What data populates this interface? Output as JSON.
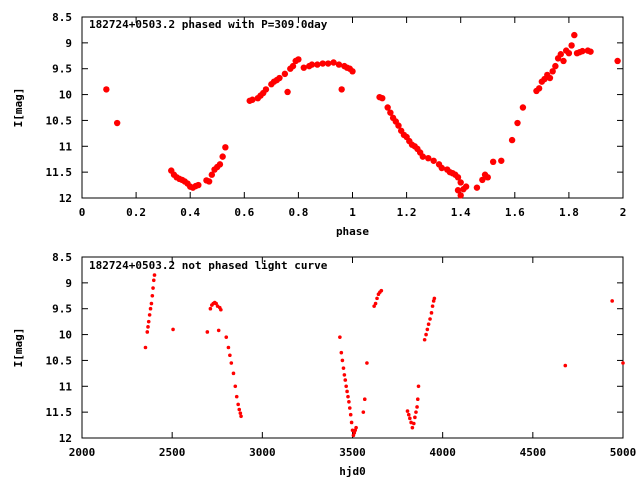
{
  "chart_data": [
    {
      "type": "scatter",
      "title": "182724+0503.2 phased with P=309.0day",
      "xlabel": "phase",
      "ylabel": "I[mag]",
      "xlim": [
        0,
        2
      ],
      "ylim": [
        12,
        8.5
      ],
      "y_inverted": true,
      "xticks": [
        0,
        0.2,
        0.4,
        0.6,
        0.8,
        1,
        1.2,
        1.4,
        1.6,
        1.8,
        2
      ],
      "xtick_labels": [
        "0",
        "0.2",
        "0.4",
        "0.6",
        "0.8",
        "1",
        "1.2",
        "1.4",
        "1.6",
        "1.8",
        "2"
      ],
      "yticks": [
        8.5,
        9,
        9.5,
        10,
        10.5,
        11,
        11.5,
        12
      ],
      "ytick_labels": [
        "8.5",
        "9",
        "9.5",
        "10",
        "10.5",
        "11",
        "11.5",
        "12"
      ],
      "marker_color": "#ff0000",
      "marker_size": "large",
      "grid": false,
      "points": [
        [
          0.09,
          9.9
        ],
        [
          0.13,
          10.55
        ],
        [
          0.33,
          11.47
        ],
        [
          0.34,
          11.55
        ],
        [
          0.35,
          11.6
        ],
        [
          0.36,
          11.63
        ],
        [
          0.37,
          11.65
        ],
        [
          0.38,
          11.68
        ],
        [
          0.39,
          11.72
        ],
        [
          0.4,
          11.78
        ],
        [
          0.41,
          11.8
        ],
        [
          0.42,
          11.77
        ],
        [
          0.43,
          11.75
        ],
        [
          0.46,
          11.66
        ],
        [
          0.47,
          11.68
        ],
        [
          0.48,
          11.55
        ],
        [
          0.49,
          11.45
        ],
        [
          0.5,
          11.4
        ],
        [
          0.51,
          11.35
        ],
        [
          0.52,
          11.2
        ],
        [
          0.53,
          11.02
        ],
        [
          0.62,
          10.12
        ],
        [
          0.63,
          10.1
        ],
        [
          0.65,
          10.07
        ],
        [
          0.66,
          10.02
        ],
        [
          0.67,
          9.97
        ],
        [
          0.68,
          9.9
        ],
        [
          0.7,
          9.8
        ],
        [
          0.71,
          9.75
        ],
        [
          0.72,
          9.72
        ],
        [
          0.73,
          9.68
        ],
        [
          0.75,
          9.6
        ],
        [
          0.76,
          9.95
        ],
        [
          0.77,
          9.5
        ],
        [
          0.78,
          9.45
        ],
        [
          0.79,
          9.35
        ],
        [
          0.8,
          9.32
        ],
        [
          0.82,
          9.48
        ],
        [
          0.84,
          9.45
        ],
        [
          0.85,
          9.42
        ],
        [
          0.87,
          9.42
        ],
        [
          0.89,
          9.4
        ],
        [
          0.91,
          9.4
        ],
        [
          0.93,
          9.38
        ],
        [
          0.95,
          9.42
        ],
        [
          0.96,
          9.9
        ],
        [
          0.97,
          9.45
        ],
        [
          0.98,
          9.48
        ],
        [
          0.99,
          9.5
        ],
        [
          1.0,
          9.55
        ],
        [
          1.1,
          10.05
        ],
        [
          1.11,
          10.07
        ],
        [
          1.13,
          10.25
        ],
        [
          1.14,
          10.35
        ],
        [
          1.15,
          10.45
        ],
        [
          1.16,
          10.52
        ],
        [
          1.17,
          10.6
        ],
        [
          1.18,
          10.7
        ],
        [
          1.19,
          10.78
        ],
        [
          1.2,
          10.82
        ],
        [
          1.21,
          10.9
        ],
        [
          1.22,
          10.97
        ],
        [
          1.23,
          11.0
        ],
        [
          1.24,
          11.05
        ],
        [
          1.25,
          11.12
        ],
        [
          1.26,
          11.2
        ],
        [
          1.28,
          11.23
        ],
        [
          1.3,
          11.28
        ],
        [
          1.32,
          11.35
        ],
        [
          1.33,
          11.42
        ],
        [
          1.35,
          11.45
        ],
        [
          1.36,
          11.5
        ],
        [
          1.37,
          11.52
        ],
        [
          1.38,
          11.55
        ],
        [
          1.39,
          11.6
        ],
        [
          1.4,
          11.7
        ],
        [
          1.39,
          11.85
        ],
        [
          1.4,
          11.95
        ],
        [
          1.41,
          11.83
        ],
        [
          1.42,
          11.78
        ],
        [
          1.46,
          11.8
        ],
        [
          1.48,
          11.65
        ],
        [
          1.49,
          11.55
        ],
        [
          1.5,
          11.6
        ],
        [
          1.52,
          11.3
        ],
        [
          1.55,
          11.28
        ],
        [
          1.59,
          10.88
        ],
        [
          1.61,
          10.55
        ],
        [
          1.63,
          10.25
        ],
        [
          1.68,
          9.93
        ],
        [
          1.69,
          9.88
        ],
        [
          1.7,
          9.75
        ],
        [
          1.71,
          9.7
        ],
        [
          1.72,
          9.62
        ],
        [
          1.73,
          9.68
        ],
        [
          1.74,
          9.55
        ],
        [
          1.75,
          9.45
        ],
        [
          1.76,
          9.3
        ],
        [
          1.77,
          9.22
        ],
        [
          1.78,
          9.35
        ],
        [
          1.79,
          9.15
        ],
        [
          1.8,
          9.2
        ],
        [
          1.81,
          9.05
        ],
        [
          1.82,
          8.85
        ],
        [
          1.83,
          9.2
        ],
        [
          1.84,
          9.18
        ],
        [
          1.85,
          9.16
        ],
        [
          1.87,
          9.15
        ],
        [
          1.88,
          9.17
        ],
        [
          1.98,
          9.35
        ]
      ]
    },
    {
      "type": "scatter",
      "title": "182724+0503.2 not phased light curve",
      "xlabel": "hjd0",
      "ylabel": "I[mag]",
      "xlim": [
        2000,
        5000
      ],
      "ylim": [
        12,
        8.5
      ],
      "y_inverted": true,
      "xticks": [
        2000,
        2500,
        3000,
        3500,
        4000,
        4500,
        5000
      ],
      "xtick_labels": [
        "2000",
        "2500",
        "3000",
        "3500",
        "4000",
        "4500",
        "5000"
      ],
      "yticks": [
        8.5,
        9,
        9.5,
        10,
        10.5,
        11,
        11.5,
        12
      ],
      "ytick_labels": [
        "8.5",
        "9",
        "9.5",
        "10",
        "10.5",
        "11",
        "11.5",
        "12"
      ],
      "marker_color": "#ff0000",
      "marker_size": "small",
      "grid": false,
      "points": [
        [
          2352,
          10.25
        ],
        [
          2362,
          9.95
        ],
        [
          2366,
          9.85
        ],
        [
          2370,
          9.75
        ],
        [
          2375,
          9.62
        ],
        [
          2380,
          9.5
        ],
        [
          2385,
          9.4
        ],
        [
          2390,
          9.25
        ],
        [
          2394,
          9.1
        ],
        [
          2398,
          8.95
        ],
        [
          2402,
          8.85
        ],
        [
          2505,
          9.9
        ],
        [
          2695,
          9.95
        ],
        [
          2712,
          9.5
        ],
        [
          2720,
          9.43
        ],
        [
          2728,
          9.4
        ],
        [
          2736,
          9.38
        ],
        [
          2744,
          9.4
        ],
        [
          2752,
          9.45
        ],
        [
          2758,
          9.92
        ],
        [
          2764,
          9.48
        ],
        [
          2770,
          9.52
        ],
        [
          2800,
          10.05
        ],
        [
          2812,
          10.25
        ],
        [
          2820,
          10.4
        ],
        [
          2828,
          10.55
        ],
        [
          2840,
          10.75
        ],
        [
          2850,
          11.0
        ],
        [
          2858,
          11.2
        ],
        [
          2866,
          11.35
        ],
        [
          2872,
          11.45
        ],
        [
          2878,
          11.52
        ],
        [
          2882,
          11.58
        ],
        [
          3430,
          10.05
        ],
        [
          3438,
          10.35
        ],
        [
          3444,
          10.5
        ],
        [
          3450,
          10.65
        ],
        [
          3455,
          10.78
        ],
        [
          3460,
          10.88
        ],
        [
          3465,
          11.0
        ],
        [
          3470,
          11.1
        ],
        [
          3475,
          11.2
        ],
        [
          3480,
          11.3
        ],
        [
          3485,
          11.42
        ],
        [
          3490,
          11.55
        ],
        [
          3495,
          11.7
        ],
        [
          3500,
          11.85
        ],
        [
          3505,
          11.95
        ],
        [
          3510,
          11.9
        ],
        [
          3515,
          11.85
        ],
        [
          3520,
          11.8
        ],
        [
          3560,
          11.5
        ],
        [
          3568,
          11.25
        ],
        [
          3580,
          10.55
        ],
        [
          3620,
          9.45
        ],
        [
          3628,
          9.4
        ],
        [
          3636,
          9.3
        ],
        [
          3644,
          9.22
        ],
        [
          3652,
          9.18
        ],
        [
          3660,
          9.15
        ],
        [
          3805,
          11.48
        ],
        [
          3812,
          11.55
        ],
        [
          3818,
          11.62
        ],
        [
          3825,
          11.7
        ],
        [
          3832,
          11.8
        ],
        [
          3840,
          11.72
        ],
        [
          3846,
          11.6
        ],
        [
          3852,
          11.5
        ],
        [
          3858,
          11.4
        ],
        [
          3862,
          11.25
        ],
        [
          3866,
          11.0
        ],
        [
          3900,
          10.1
        ],
        [
          3908,
          10.0
        ],
        [
          3915,
          9.9
        ],
        [
          3922,
          9.8
        ],
        [
          3930,
          9.7
        ],
        [
          3938,
          9.58
        ],
        [
          3944,
          9.45
        ],
        [
          3950,
          9.35
        ],
        [
          3954,
          9.3
        ],
        [
          4680,
          10.6
        ],
        [
          4940,
          9.35
        ],
        [
          5000,
          10.55
        ]
      ]
    }
  ]
}
